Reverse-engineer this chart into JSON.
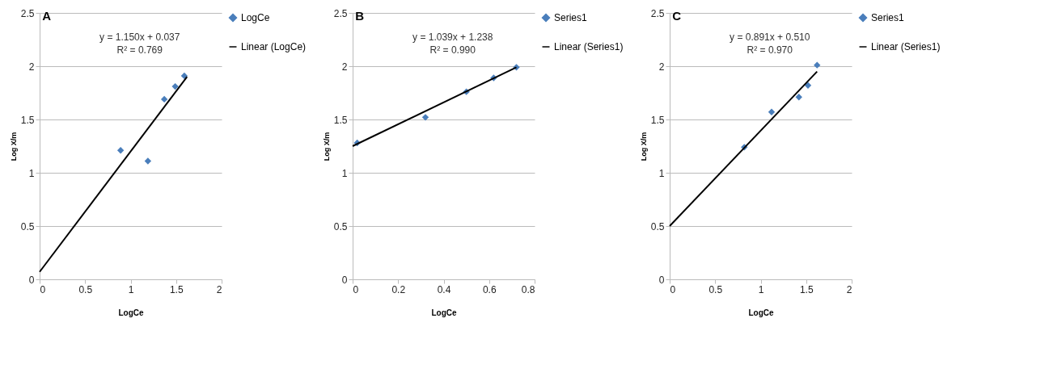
{
  "chart_data": [
    {
      "type": "scatter",
      "title": "A",
      "xlabel": "LogCe",
      "ylabel": "Log X/m",
      "xlim": [
        0,
        2
      ],
      "xticks": [
        0,
        0.5,
        1,
        1.5,
        2
      ],
      "ylim": [
        0,
        2.5
      ],
      "yticks": [
        0,
        0.5,
        1,
        1.5,
        2,
        2.5
      ],
      "grid": "y",
      "legend": "right",
      "line_style": "solid",
      "annotations": [
        "y = 1.150x + 0.037",
        "R² = 0.769"
      ],
      "series": [
        {
          "name": "LogCe",
          "marker": "diamond",
          "color": "#4a7ebb",
          "x": [
            0.89,
            1.19,
            1.37,
            1.49,
            1.59
          ],
          "values": [
            1.21,
            1.11,
            1.69,
            1.81,
            1.91
          ]
        },
        {
          "name": "Linear (LogCe)",
          "type": "line",
          "marker": "none",
          "color": "#000000",
          "x": [
            0,
            1.62
          ],
          "values": [
            0.07,
            1.9
          ]
        }
      ]
    },
    {
      "type": "scatter",
      "title": "B",
      "xlabel": "LogCe",
      "ylabel": "Log X/m",
      "xlim": [
        0,
        0.8
      ],
      "xticks": [
        0,
        0.2,
        0.4,
        0.6,
        0.8
      ],
      "ylim": [
        0,
        2.5
      ],
      "yticks": [
        0,
        0.5,
        1,
        1.5,
        2,
        2.5
      ],
      "grid": "y",
      "legend": "right",
      "line_style": "solid",
      "annotations": [
        "y = 1.039x + 1.238",
        "R² = 0.990"
      ],
      "series": [
        {
          "name": "Series1",
          "marker": "diamond",
          "color": "#4a7ebb",
          "x": [
            0.02,
            0.32,
            0.5,
            0.62,
            0.72
          ],
          "values": [
            1.28,
            1.52,
            1.76,
            1.89,
            1.99
          ]
        },
        {
          "name": "Linear (Series1)",
          "type": "line",
          "marker": "none",
          "color": "#000000",
          "x": [
            0,
            0.72
          ],
          "values": [
            1.25,
            1.99
          ]
        }
      ]
    },
    {
      "type": "scatter",
      "title": "C",
      "xlabel": "LogCe",
      "ylabel": "Log X/m",
      "xlim": [
        0,
        2
      ],
      "xticks": [
        0,
        0.5,
        1,
        1.5,
        2
      ],
      "ylim": [
        0,
        2.5
      ],
      "yticks": [
        0,
        0.5,
        1,
        1.5,
        2,
        2.5
      ],
      "grid": "y",
      "legend": "right",
      "line_style": "solid",
      "annotations": [
        "y = 0.891x + 0.510",
        "R² = 0.970"
      ],
      "series": [
        {
          "name": "Series1",
          "marker": "diamond",
          "color": "#4a7ebb",
          "x": [
            0.82,
            1.12,
            1.42,
            1.52,
            1.62
          ],
          "values": [
            1.24,
            1.57,
            1.71,
            1.82,
            2.01
          ]
        },
        {
          "name": "Linear (Series1)",
          "type": "line",
          "marker": "none",
          "color": "#000000",
          "x": [
            0,
            1.62
          ],
          "values": [
            0.5,
            1.95
          ]
        }
      ]
    }
  ]
}
